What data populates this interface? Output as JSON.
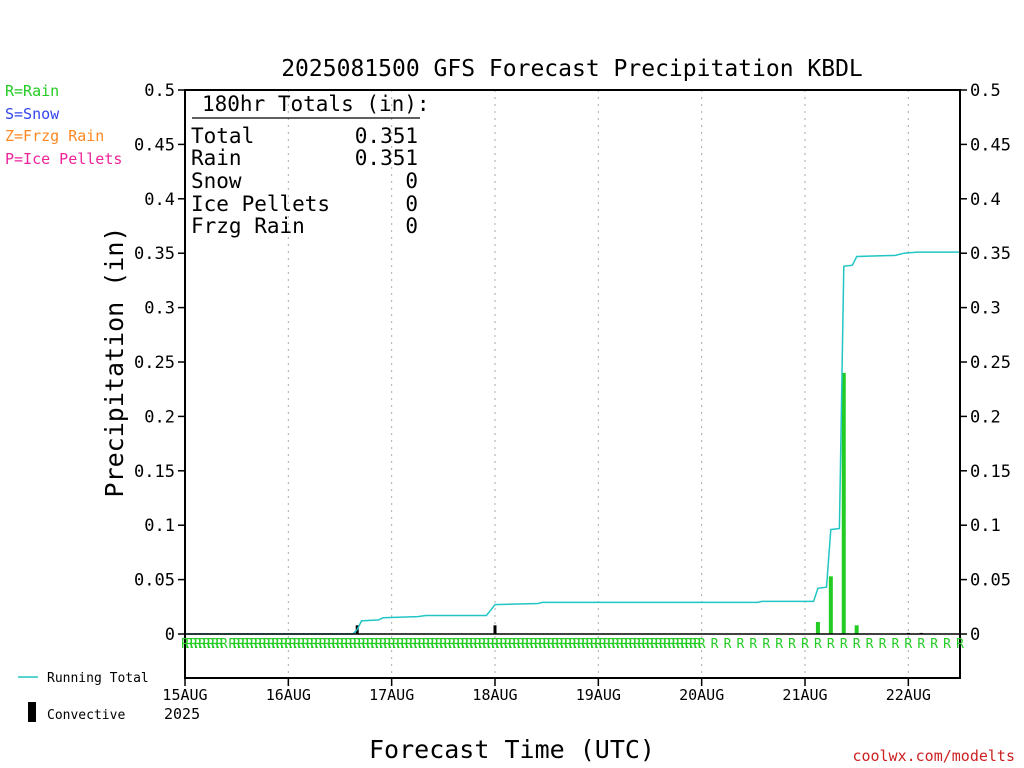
{
  "chart_data": {
    "type": "bar",
    "title": "2025081500 GFS Forecast Precipitation KBDL",
    "xlabel": "Forecast Time (UTC)",
    "ylabel": "Precipitation (in)",
    "ylim": [
      0,
      0.5
    ],
    "y_ticks": [
      "0",
      "0.05",
      "0.1",
      "0.15",
      "0.2",
      "0.25",
      "0.3",
      "0.35",
      "0.4",
      "0.45",
      "0.5"
    ],
    "x_range_hours": [
      0,
      180
    ],
    "x_ticks": [
      {
        "hour": 0,
        "label": "15AUG"
      },
      {
        "hour": 24,
        "label": "16AUG"
      },
      {
        "hour": 48,
        "label": "17AUG"
      },
      {
        "hour": 72,
        "label": "18AUG"
      },
      {
        "hour": 96,
        "label": "19AUG"
      },
      {
        "hour": 120,
        "label": "20AUG"
      },
      {
        "hour": 144,
        "label": "21AUG"
      },
      {
        "hour": 168,
        "label": "22AUG"
      }
    ],
    "year_label": "2025",
    "grid": true,
    "legend_top": [
      {
        "label": "R=Rain",
        "color": "#22cc22"
      },
      {
        "label": "S=Snow",
        "color": "#3344ee"
      },
      {
        "label": "Z=Frzg Rain",
        "color": "#ff8822"
      },
      {
        "label": "P=Ice Pellets",
        "color": "#ee2299"
      }
    ],
    "legend_bottom": [
      {
        "label": "Running Total",
        "color": "#22c5c5"
      },
      {
        "label": "Convective",
        "color": "#000000"
      }
    ],
    "totals_box": {
      "header": "180hr Totals (in):",
      "rows": [
        {
          "label": "Total",
          "value": "0.351"
        },
        {
          "label": "Rain",
          "value": "0.351"
        },
        {
          "label": "Snow",
          "value": "0"
        },
        {
          "label": "Ice Pellets",
          "value": "0"
        },
        {
          "label": "Frzg Rain",
          "value": "0"
        }
      ]
    },
    "series": [
      {
        "name": "Running Total",
        "color": "#22c5c5",
        "points": [
          [
            0,
            0
          ],
          [
            39,
            0
          ],
          [
            40,
            0.004
          ],
          [
            41,
            0.012
          ],
          [
            45,
            0.013
          ],
          [
            46,
            0.015
          ],
          [
            54,
            0.016
          ],
          [
            56,
            0.017
          ],
          [
            70,
            0.017
          ],
          [
            71,
            0.022
          ],
          [
            72,
            0.027
          ],
          [
            82,
            0.028
          ],
          [
            83,
            0.029
          ],
          [
            133,
            0.029
          ],
          [
            134,
            0.03
          ],
          [
            146,
            0.03
          ],
          [
            147,
            0.042
          ],
          [
            149,
            0.043
          ],
          [
            150,
            0.096
          ],
          [
            152,
            0.097
          ],
          [
            153,
            0.338
          ],
          [
            155,
            0.339
          ],
          [
            156,
            0.347
          ],
          [
            165,
            0.348
          ],
          [
            167,
            0.35
          ],
          [
            170,
            0.351
          ],
          [
            180,
            0.351
          ]
        ]
      },
      {
        "name": "Rain",
        "color": "#22cc22",
        "bars": [
          [
            147,
            0.011
          ],
          [
            150,
            0.053
          ],
          [
            153,
            0.24
          ],
          [
            156,
            0.008
          ]
        ]
      },
      {
        "name": "Convective",
        "color": "#000000",
        "bars": [
          [
            40,
            0.008
          ],
          [
            72,
            0.008
          ],
          [
            168,
            0.001
          ],
          [
            171,
            0.001
          ]
        ]
      }
    ],
    "ptype_hours": [
      0,
      1,
      2,
      3,
      4,
      5,
      6,
      7,
      8,
      9,
      11,
      12,
      13,
      14,
      15,
      16,
      17,
      18,
      19,
      20,
      21,
      22,
      23,
      24,
      25,
      26,
      27,
      28,
      29,
      30,
      31,
      32,
      33,
      34,
      35,
      36,
      37,
      38,
      39,
      40,
      41,
      42,
      43,
      44,
      45,
      46,
      47,
      48,
      49,
      50,
      51,
      52,
      53,
      54,
      55,
      56,
      57,
      58,
      59,
      60,
      61,
      62,
      63,
      64,
      65,
      66,
      67,
      68,
      69,
      70,
      71,
      72,
      73,
      74,
      75,
      76,
      77,
      78,
      79,
      80,
      81,
      82,
      83,
      84,
      85,
      86,
      87,
      88,
      89,
      90,
      91,
      92,
      93,
      94,
      95,
      96,
      97,
      98,
      99,
      100,
      101,
      102,
      103,
      104,
      105,
      106,
      107,
      108,
      109,
      110,
      111,
      112,
      113,
      114,
      115,
      116,
      117,
      118,
      119,
      120,
      123,
      126,
      129,
      132,
      135,
      138,
      141,
      144,
      147,
      150,
      153,
      156,
      159,
      162,
      165,
      168,
      171,
      174,
      177,
      180
    ],
    "credit": "coolwx.com/modelts"
  }
}
